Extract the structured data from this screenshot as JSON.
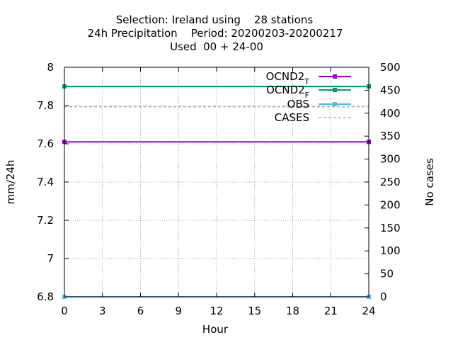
{
  "chart_data": {
    "type": "line",
    "title_lines": [
      "Selection: Ireland using    28 stations",
      "24h Precipitation    Period: 20200203-20200217",
      "Used  00 + 24-00"
    ],
    "xlabel": "Hour",
    "ylabel": "mm/24h",
    "y2label": "No cases",
    "xlim": [
      0,
      24
    ],
    "ylim": [
      6.8,
      8.0
    ],
    "y2lim": [
      0,
      500
    ],
    "x_ticks": [
      0,
      3,
      6,
      9,
      12,
      15,
      18,
      21,
      24
    ],
    "y_ticks": [
      6.8,
      7.0,
      7.2,
      7.4,
      7.6,
      7.8,
      8.0
    ],
    "y_tick_labels": [
      "6.8",
      "7",
      "7.2",
      "7.4",
      "7.6",
      "7.8",
      "8"
    ],
    "y2_ticks": [
      0,
      50,
      100,
      150,
      200,
      250,
      300,
      350,
      400,
      450,
      500
    ],
    "grid": true,
    "legend_position": "top-right",
    "series": [
      {
        "name": "OCND2",
        "subscript": "T",
        "axis": "y",
        "color": "#9400d3",
        "dashed": false,
        "x": [
          0,
          24
        ],
        "values": [
          7.61,
          7.61
        ]
      },
      {
        "name": "OCND2",
        "subscript": "F",
        "axis": "y",
        "color": "#009e73",
        "dashed": false,
        "x": [
          0,
          24
        ],
        "values": [
          7.9,
          7.9
        ]
      },
      {
        "name": "OBS",
        "subscript": "",
        "axis": "y",
        "color": "#56b4e9",
        "dashed": false,
        "x": [
          0,
          24
        ],
        "values": [
          6.8,
          6.8
        ]
      },
      {
        "name": "CASES",
        "subscript": "",
        "axis": "y2",
        "color": "#a0a0a0",
        "dashed": true,
        "x": [
          0,
          24
        ],
        "values": [
          414,
          414
        ]
      }
    ]
  }
}
